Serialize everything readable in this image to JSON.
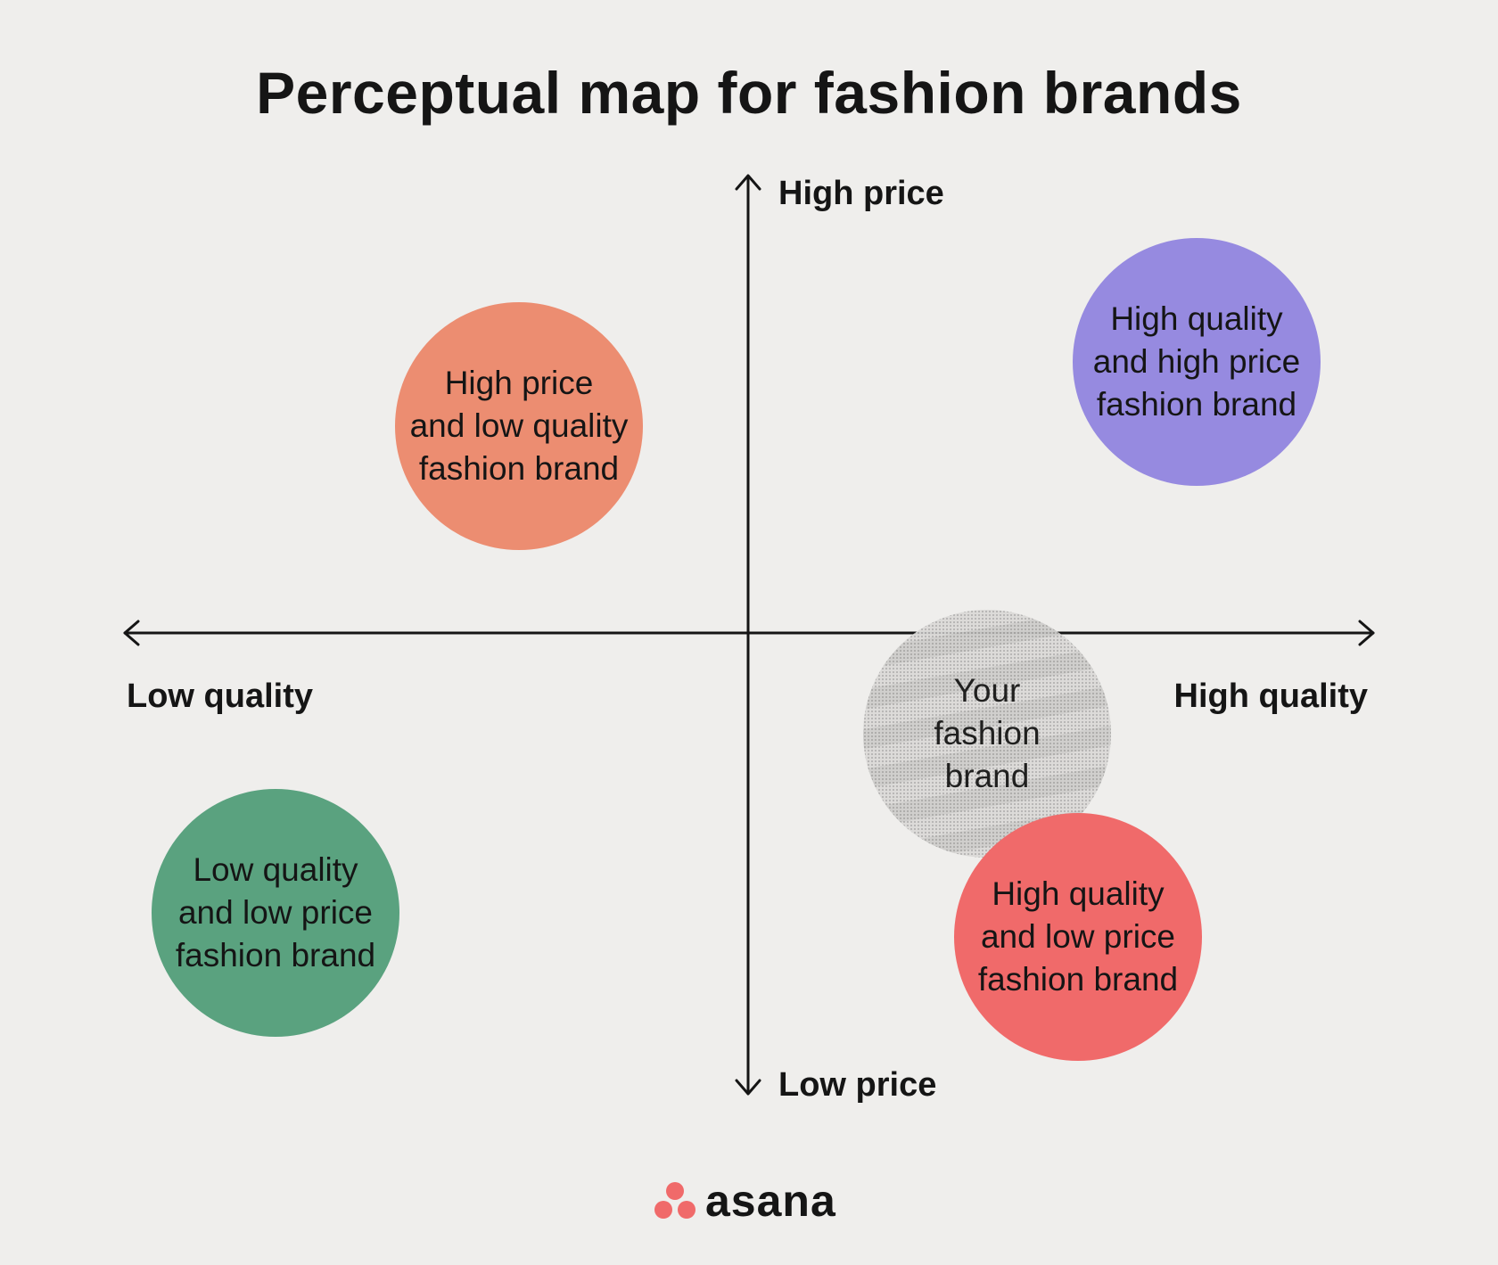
{
  "title": "Perceptual map for fashion brands",
  "axes": {
    "top": "High price",
    "bottom": "Low price",
    "left": "Low quality",
    "right": "High quality"
  },
  "bubbles": [
    {
      "lines": [
        "High price",
        "and low quality",
        "fashion brand"
      ],
      "color": "#ec8d71"
    },
    {
      "lines": [
        "High quality",
        "and high price",
        "fashion brand"
      ],
      "color": "#968ae0"
    },
    {
      "lines": [
        "Low quality",
        "and low price",
        "fashion brand"
      ],
      "color": "#5aa27f"
    },
    {
      "lines": [
        "Your",
        "fashion",
        "brand"
      ],
      "color": "#d8d7d5"
    },
    {
      "lines": [
        "High quality",
        "and low price",
        "fashion brand"
      ],
      "color": "#f06a6a"
    }
  ],
  "logo": {
    "text": "asana",
    "color": "#f06a6a"
  }
}
